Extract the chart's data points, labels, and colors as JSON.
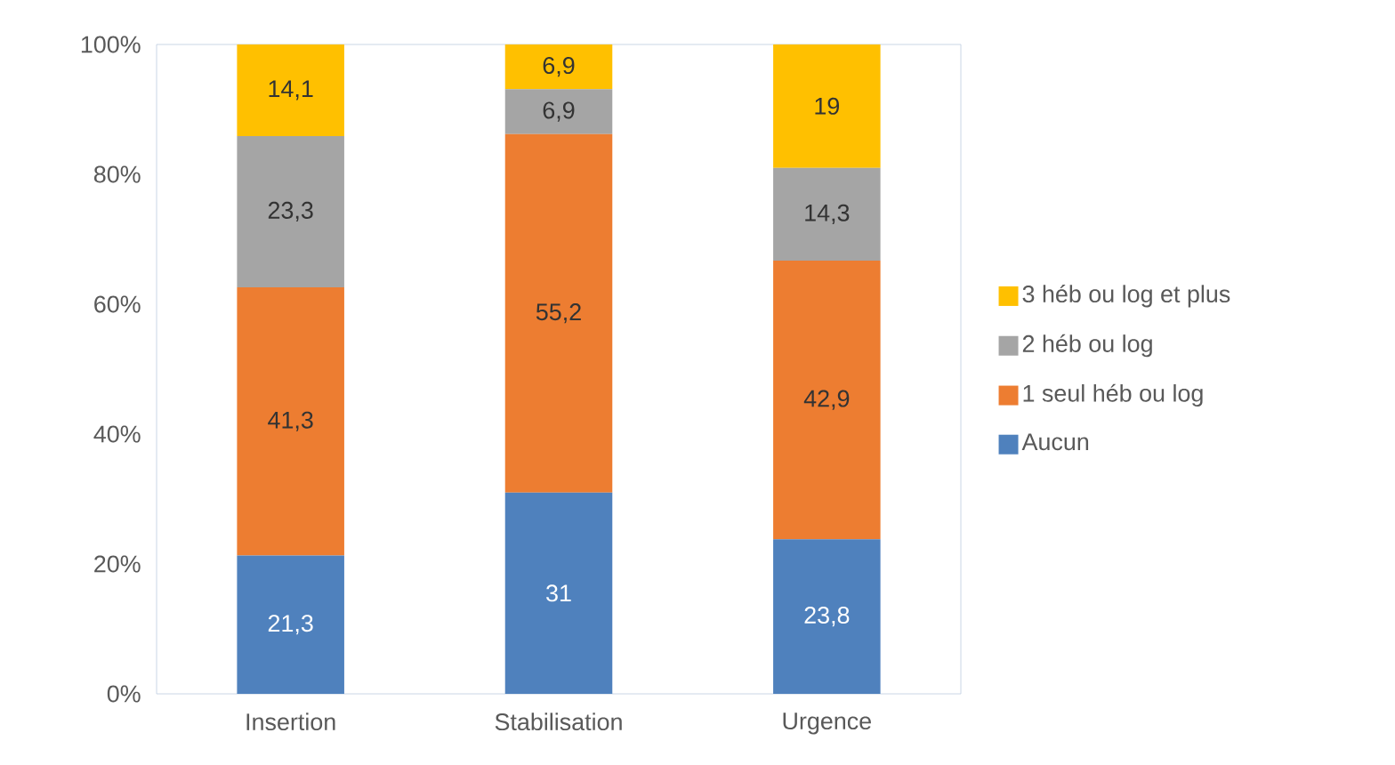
{
  "chart_data": {
    "type": "bar",
    "stacked": true,
    "categories": [
      "Insertion",
      "Stabilisation",
      "Urgence"
    ],
    "series": [
      {
        "name": "Aucun",
        "color": "#4f81bd",
        "values": [
          21.3,
          31,
          23.8
        ],
        "value_labels": [
          "21,3",
          "31",
          "23,8"
        ]
      },
      {
        "name": "1 seul héb ou log",
        "color": "#ed7d31",
        "values": [
          41.3,
          55.2,
          42.9
        ],
        "value_labels": [
          "41,3",
          "55,2",
          "42,9"
        ]
      },
      {
        "name": "2 héb ou log",
        "color": "#a5a5a5",
        "values": [
          23.3,
          6.9,
          14.3
        ],
        "value_labels": [
          "23,3",
          "6,9",
          "14,3"
        ]
      },
      {
        "name": "3 héb ou log et plus",
        "color": "#ffc000",
        "values": [
          14.1,
          6.9,
          19
        ],
        "value_labels": [
          "14,1",
          "6,9",
          "19"
        ]
      }
    ],
    "ylim": [
      0,
      100
    ],
    "yticks": [
      {
        "value": 0,
        "label": "0%"
      },
      {
        "value": 20,
        "label": "20%"
      },
      {
        "value": 40,
        "label": "40%"
      },
      {
        "value": 60,
        "label": "60%"
      },
      {
        "value": 80,
        "label": "80%"
      },
      {
        "value": 100,
        "label": "100%"
      }
    ],
    "legend": "right"
  }
}
